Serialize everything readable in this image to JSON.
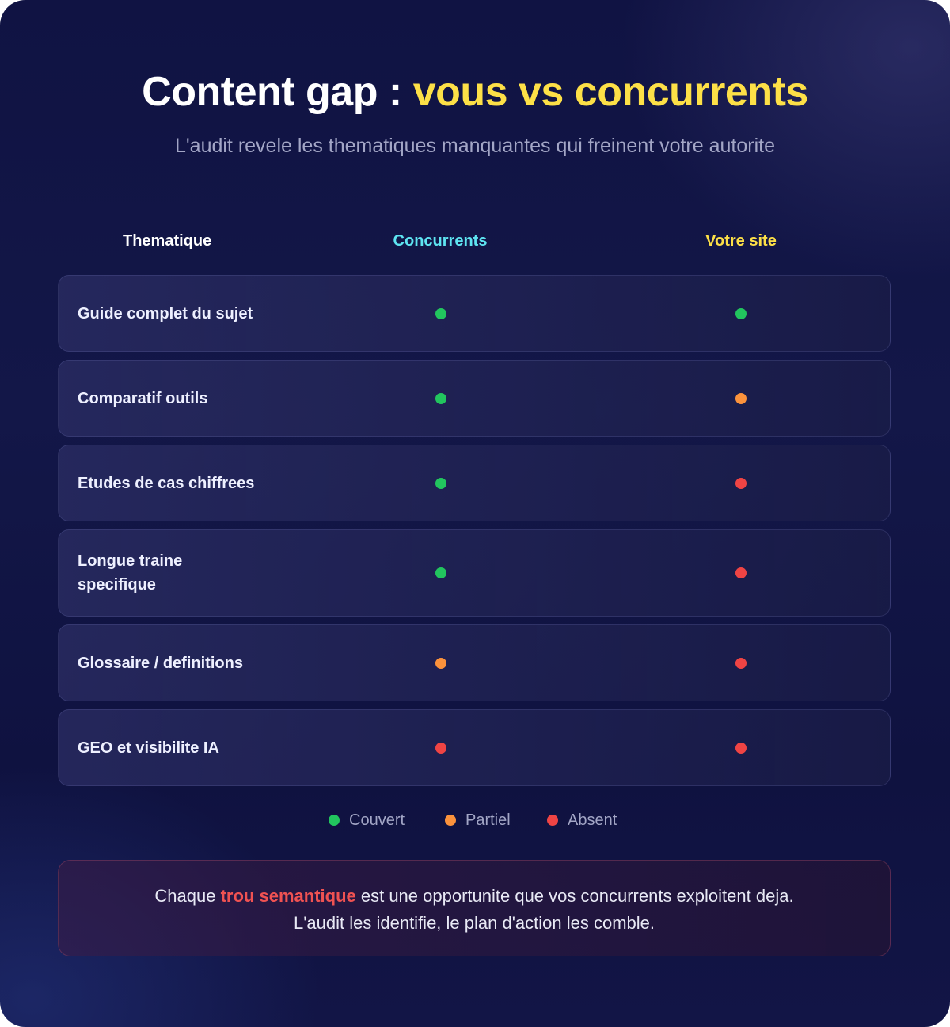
{
  "header": {
    "title_main": "Content gap :",
    "title_accent": "vous vs concurrents",
    "subtitle": "L'audit revele les thematiques manquantes qui freinent votre autorite"
  },
  "table": {
    "columns": {
      "theme": "Thematique",
      "competitors": "Concurrents",
      "site": "Votre site"
    },
    "rows": [
      {
        "label": "Guide complet du sujet",
        "competitors": "Couvert",
        "site": "Couvert"
      },
      {
        "label": "Comparatif outils",
        "competitors": "Couvert",
        "site": "Partiel"
      },
      {
        "label": "Etudes de cas chiffrees",
        "competitors": "Couvert",
        "site": "Absent"
      },
      {
        "label": "Longue traine specifique",
        "competitors": "Couvert",
        "site": "Absent"
      },
      {
        "label": "Glossaire / definitions",
        "competitors": "Partiel",
        "site": "Absent"
      },
      {
        "label": "GEO et visibilite IA",
        "competitors": "Absent",
        "site": "Absent"
      }
    ]
  },
  "legend": {
    "covered": "Couvert",
    "partial": "Partiel",
    "absent": "Absent"
  },
  "status_colors": {
    "Couvert": "#22c55e",
    "Partiel": "#fb923c",
    "Absent": "#ef4444"
  },
  "callout": {
    "prefix": "Chaque ",
    "highlight": "trou semantique",
    "line1_suffix": " est une opportunite que vos concurrents exploitent deja.",
    "line2": "L'audit les identifie, le plan d'action les comble."
  }
}
